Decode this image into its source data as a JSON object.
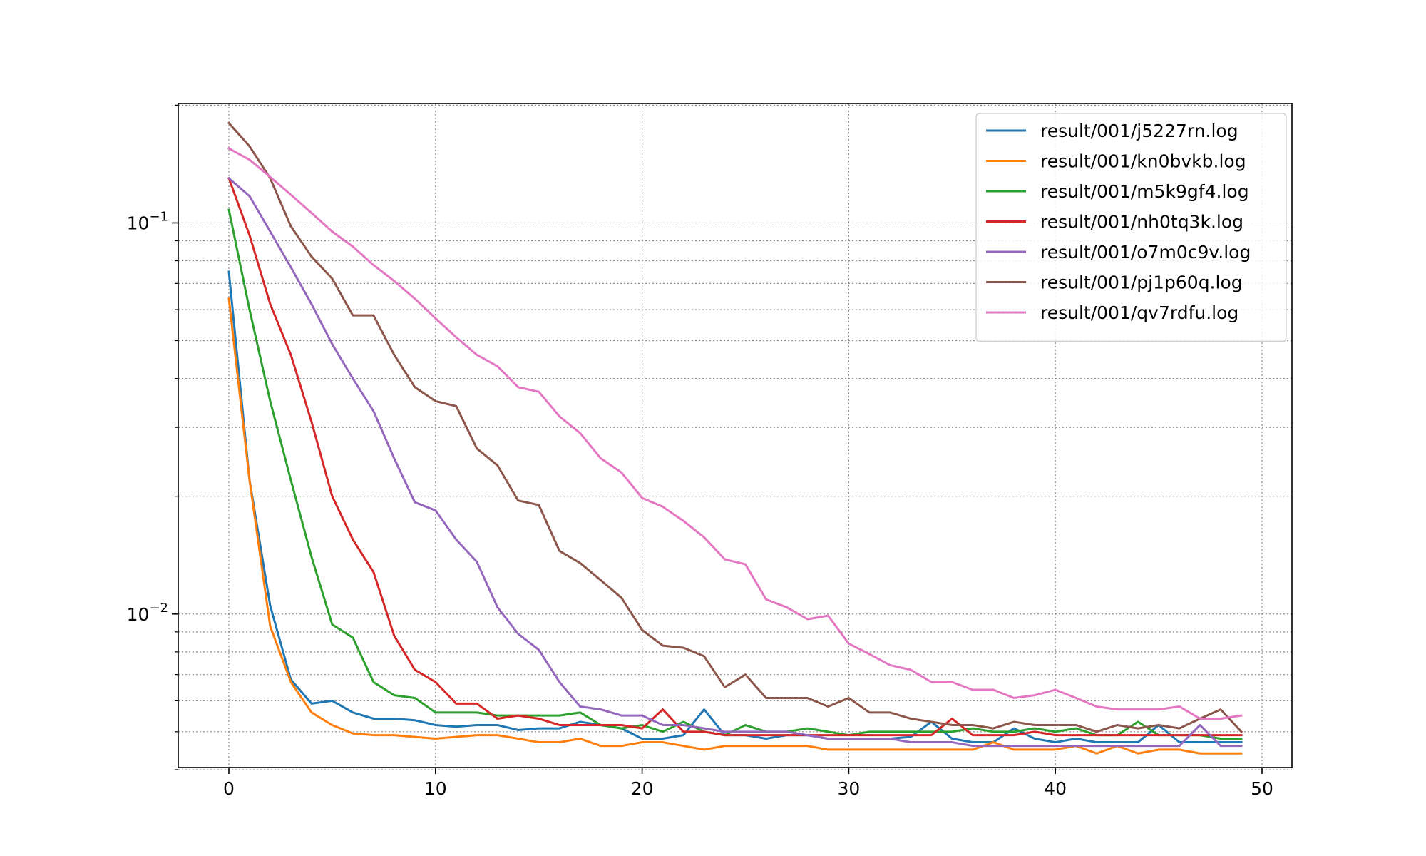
{
  "chart_data": {
    "type": "line",
    "title": "",
    "xlabel": "",
    "ylabel": "",
    "yscale": "log",
    "xlim": [
      -2.45,
      51.45
    ],
    "ylim": [
      0.00405,
      0.202
    ],
    "grid": true,
    "grid_minor": true,
    "legend_position": "top-right",
    "x_ticks": [
      {
        "value": 0,
        "label": "0"
      },
      {
        "value": 10,
        "label": "10"
      },
      {
        "value": 20,
        "label": "20"
      },
      {
        "value": 30,
        "label": "30"
      },
      {
        "value": 40,
        "label": "40"
      },
      {
        "value": 50,
        "label": "50"
      }
    ],
    "y_ticks": [
      {
        "value": 0.01,
        "base": "10",
        "exp": "−2"
      },
      {
        "value": 0.1,
        "base": "10",
        "exp": "−1"
      }
    ],
    "y_minor_ticks": [
      0.004,
      0.005,
      0.006,
      0.007,
      0.008,
      0.009,
      0.02,
      0.03,
      0.04,
      0.05,
      0.06,
      0.07,
      0.08,
      0.09,
      0.2
    ],
    "x": [
      0,
      1,
      2,
      3,
      4,
      5,
      6,
      7,
      8,
      9,
      10,
      11,
      12,
      13,
      14,
      15,
      16,
      17,
      18,
      19,
      20,
      21,
      22,
      23,
      24,
      25,
      26,
      27,
      28,
      29,
      30,
      31,
      32,
      33,
      34,
      35,
      36,
      37,
      38,
      39,
      40,
      41,
      42,
      43,
      44,
      45,
      46,
      47,
      48,
      49
    ],
    "series": [
      {
        "name": "result/001/j5227rn.log",
        "color": "#1f77b4",
        "values": [
          0.075,
          0.022,
          0.0105,
          0.0068,
          0.0059,
          0.006,
          0.0056,
          0.0054,
          0.0054,
          0.00535,
          0.0052,
          0.00515,
          0.0052,
          0.0052,
          0.00505,
          0.0051,
          0.0051,
          0.0053,
          0.0052,
          0.0051,
          0.0048,
          0.0048,
          0.0049,
          0.0057,
          0.0049,
          0.0049,
          0.0048,
          0.0049,
          0.0049,
          0.0048,
          0.0048,
          0.0048,
          0.0048,
          0.00485,
          0.0053,
          0.0048,
          0.0047,
          0.0047,
          0.0051,
          0.0048,
          0.0047,
          0.0048,
          0.0047,
          0.0047,
          0.0047,
          0.0052,
          0.0047,
          0.0047,
          0.0047,
          0.0047
        ]
      },
      {
        "name": "result/001/kn0bvkb.log",
        "color": "#ff7f0e",
        "values": [
          0.064,
          0.022,
          0.0093,
          0.0067,
          0.0056,
          0.0052,
          0.00495,
          0.0049,
          0.0049,
          0.00485,
          0.0048,
          0.00485,
          0.0049,
          0.0049,
          0.0048,
          0.0047,
          0.0047,
          0.0048,
          0.0046,
          0.0046,
          0.0047,
          0.0047,
          0.0046,
          0.0045,
          0.0046,
          0.0046,
          0.0046,
          0.0046,
          0.0046,
          0.0045,
          0.0045,
          0.0045,
          0.0045,
          0.0045,
          0.0045,
          0.0045,
          0.0045,
          0.0047,
          0.0045,
          0.0045,
          0.0045,
          0.0046,
          0.0044,
          0.0046,
          0.0044,
          0.0045,
          0.0045,
          0.0044,
          0.0044,
          0.0044
        ]
      },
      {
        "name": "result/001/m5k9gf4.log",
        "color": "#2ca02c",
        "values": [
          0.108,
          0.06,
          0.035,
          0.022,
          0.014,
          0.0094,
          0.0087,
          0.0067,
          0.0062,
          0.0061,
          0.0056,
          0.0056,
          0.0056,
          0.0055,
          0.0055,
          0.0055,
          0.0055,
          0.0056,
          0.0052,
          0.0051,
          0.0052,
          0.005,
          0.0053,
          0.005,
          0.0049,
          0.0052,
          0.005,
          0.005,
          0.0051,
          0.005,
          0.0049,
          0.005,
          0.005,
          0.005,
          0.005,
          0.005,
          0.0051,
          0.005,
          0.005,
          0.0051,
          0.005,
          0.0051,
          0.0049,
          0.0049,
          0.0053,
          0.0049,
          0.0049,
          0.0049,
          0.0048,
          0.0048
        ]
      },
      {
        "name": "result/001/nh0tq3k.log",
        "color": "#d62728",
        "values": [
          0.13,
          0.093,
          0.062,
          0.046,
          0.031,
          0.02,
          0.0155,
          0.0128,
          0.0088,
          0.0072,
          0.0067,
          0.0059,
          0.0059,
          0.0054,
          0.0055,
          0.0054,
          0.0052,
          0.0052,
          0.0052,
          0.0052,
          0.0051,
          0.0057,
          0.005,
          0.005,
          0.0049,
          0.0049,
          0.0049,
          0.0049,
          0.0049,
          0.0049,
          0.0049,
          0.0049,
          0.0049,
          0.0049,
          0.0049,
          0.0054,
          0.0049,
          0.0049,
          0.0049,
          0.005,
          0.0049,
          0.0049,
          0.0049,
          0.0049,
          0.0049,
          0.0049,
          0.0049,
          0.0049,
          0.0049,
          0.0049
        ]
      },
      {
        "name": "result/001/o7m0c9v.log",
        "color": "#9467bd",
        "values": [
          0.13,
          0.117,
          0.095,
          0.077,
          0.062,
          0.049,
          0.04,
          0.033,
          0.025,
          0.0193,
          0.0184,
          0.0155,
          0.0136,
          0.0104,
          0.0089,
          0.0081,
          0.0067,
          0.0058,
          0.0057,
          0.0055,
          0.0055,
          0.0052,
          0.0052,
          0.0051,
          0.005,
          0.005,
          0.005,
          0.005,
          0.0049,
          0.0048,
          0.0048,
          0.0048,
          0.0048,
          0.0047,
          0.0047,
          0.0047,
          0.0046,
          0.0046,
          0.0046,
          0.0046,
          0.0046,
          0.0046,
          0.0046,
          0.0046,
          0.0046,
          0.0046,
          0.0046,
          0.0052,
          0.0046,
          0.0046
        ]
      },
      {
        "name": "result/001/pj1p60q.log",
        "color": "#8c564b",
        "values": [
          0.18,
          0.157,
          0.13,
          0.098,
          0.082,
          0.072,
          0.058,
          0.058,
          0.046,
          0.038,
          0.035,
          0.034,
          0.0265,
          0.024,
          0.0195,
          0.019,
          0.0145,
          0.0135,
          0.0122,
          0.011,
          0.0091,
          0.0083,
          0.0082,
          0.0078,
          0.0065,
          0.007,
          0.0061,
          0.0061,
          0.0061,
          0.0058,
          0.0061,
          0.0056,
          0.0056,
          0.0054,
          0.0053,
          0.0052,
          0.0052,
          0.0051,
          0.0053,
          0.0052,
          0.0052,
          0.0052,
          0.005,
          0.0052,
          0.0051,
          0.0052,
          0.0051,
          0.0054,
          0.0057,
          0.005
        ]
      },
      {
        "name": "result/001/qv7rdfu.log",
        "color": "#e377c2",
        "values": [
          0.155,
          0.145,
          0.131,
          0.118,
          0.106,
          0.095,
          0.087,
          0.078,
          0.071,
          0.064,
          0.057,
          0.051,
          0.046,
          0.043,
          0.038,
          0.037,
          0.032,
          0.029,
          0.025,
          0.023,
          0.0198,
          0.0188,
          0.0173,
          0.0157,
          0.0138,
          0.0134,
          0.0109,
          0.0104,
          0.0097,
          0.0099,
          0.0084,
          0.0079,
          0.0074,
          0.0072,
          0.0067,
          0.0067,
          0.0064,
          0.0064,
          0.0061,
          0.0062,
          0.0064,
          0.0061,
          0.0058,
          0.0057,
          0.0057,
          0.0057,
          0.0058,
          0.0054,
          0.0054,
          0.0055
        ]
      }
    ]
  }
}
